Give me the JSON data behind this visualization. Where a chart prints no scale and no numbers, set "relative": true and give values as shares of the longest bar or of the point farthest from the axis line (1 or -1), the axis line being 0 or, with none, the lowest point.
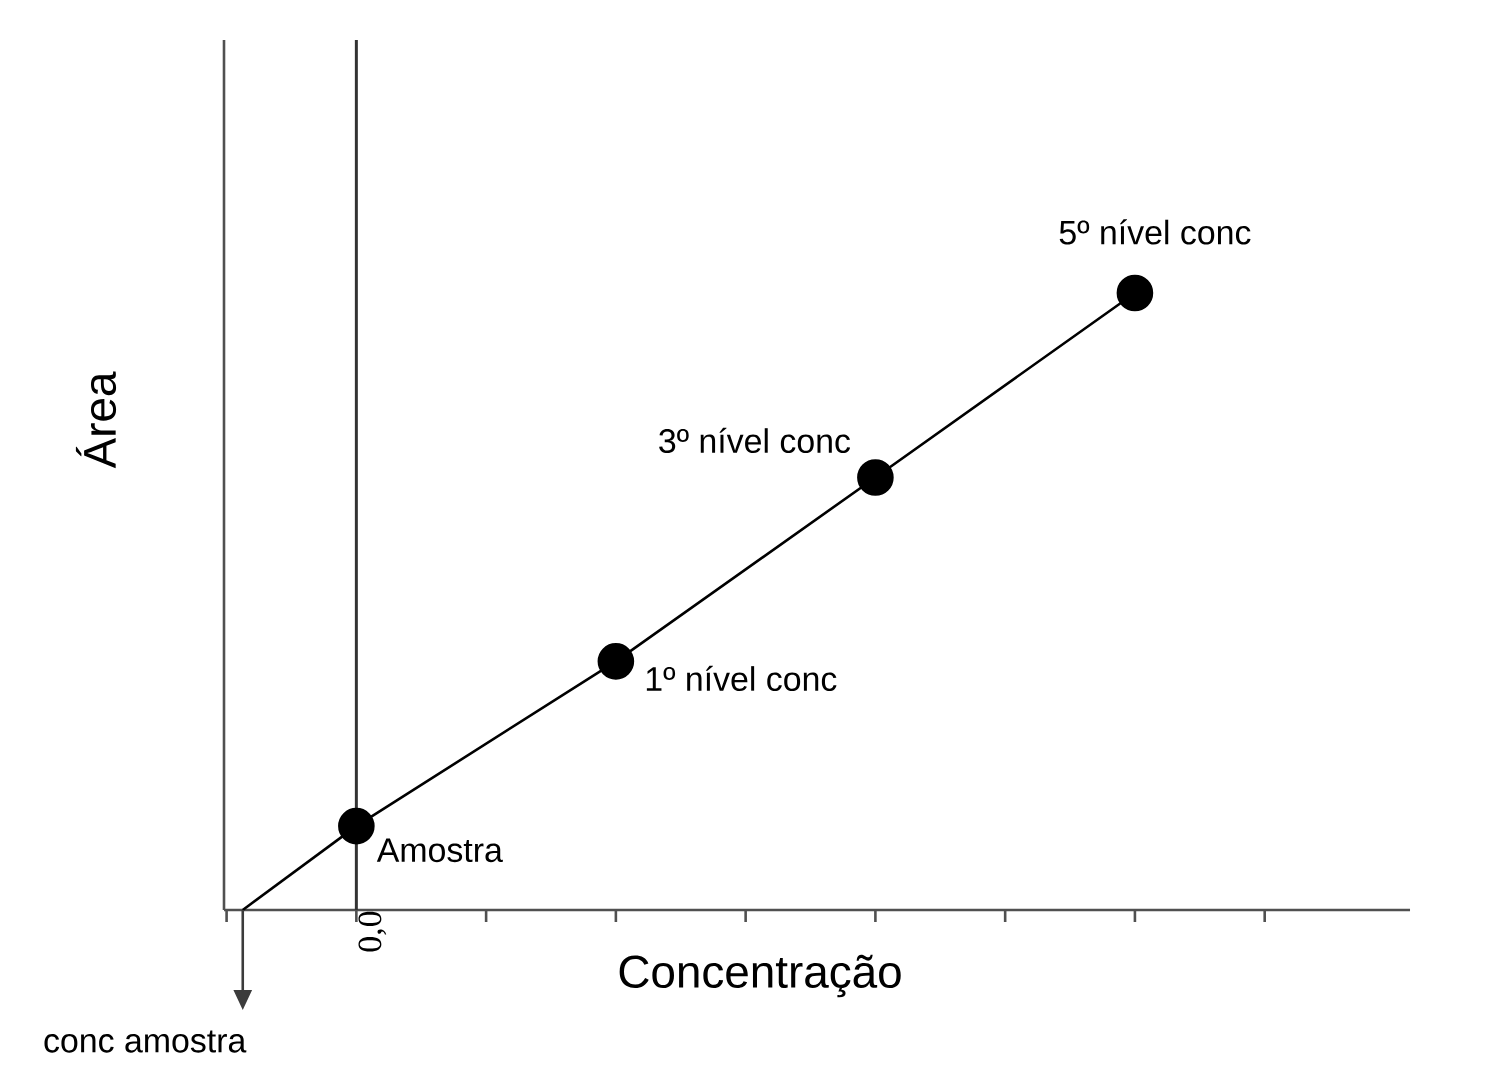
{
  "chart_data": {
    "type": "line",
    "relative": true,
    "xlabel": "Concentração",
    "ylabel": "Área",
    "categories": [
      null,
      null,
      null,
      null
    ],
    "series": [
      {
        "color": "#000000",
        "values": [
          0.136,
          0.403,
          0.701,
          1
        ],
        "marker": "circle",
        "line_style": "solid"
      }
    ],
    "ref_lines": [
      {
        "axis": "x",
        "label": "0,0",
        "color": "#333333"
      }
    ],
    "annotations": [
      "Amostra",
      "1º nível conc",
      "3º nível conc",
      "5º nível conc",
      "conc amostra"
    ]
  }
}
